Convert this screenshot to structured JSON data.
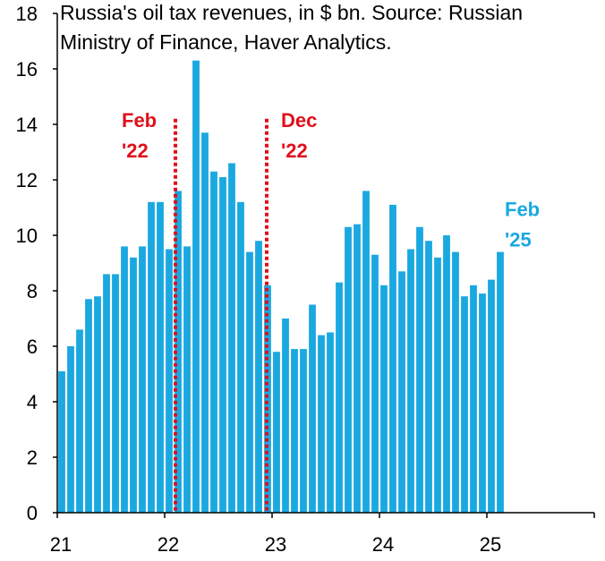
{
  "chart_data": {
    "type": "bar",
    "title_lines": [
      "Russia's oil tax revenues, in $ bn. Source: Russian",
      "Ministry of Finance, Haver Analytics."
    ],
    "xlabel": "",
    "ylabel": "",
    "ylim": [
      0,
      18
    ],
    "yticks": [
      0,
      2,
      4,
      6,
      8,
      10,
      12,
      14,
      16,
      18
    ],
    "xlim": [
      2021.0,
      2026.0
    ],
    "xtick_labels": [
      "21",
      "22",
      "23",
      "24",
      "25"
    ],
    "start_month": "2021-01",
    "series": [
      {
        "name": "Oil tax revenues ($ bn)",
        "color": "#1aa8e0",
        "values": [
          5.1,
          6.0,
          6.6,
          7.7,
          7.8,
          8.6,
          8.6,
          9.6,
          9.2,
          9.6,
          11.2,
          11.2,
          9.5,
          11.6,
          9.6,
          16.3,
          13.7,
          12.3,
          12.1,
          12.6,
          11.2,
          9.4,
          9.8,
          8.2,
          5.8,
          7.0,
          5.9,
          5.9,
          7.5,
          6.4,
          6.5,
          8.3,
          10.3,
          10.4,
          11.6,
          9.3,
          8.2,
          11.1,
          8.7,
          9.5,
          10.3,
          9.8,
          9.2,
          10.0,
          9.4,
          7.8,
          8.2,
          7.9,
          8.4,
          9.4
        ]
      }
    ],
    "annotations": [
      {
        "line1": "Feb",
        "line2": "'22",
        "x": 2022.1,
        "color": "#e0101a",
        "dotted_line": true
      },
      {
        "line1": "Dec",
        "line2": "'22",
        "x": 2022.95,
        "color": "#e0101a",
        "dotted_line": true
      },
      {
        "line1": "Feb",
        "line2": "'25",
        "x": 2025.1,
        "color": "#1aa8e0",
        "dotted_line": false
      }
    ]
  }
}
